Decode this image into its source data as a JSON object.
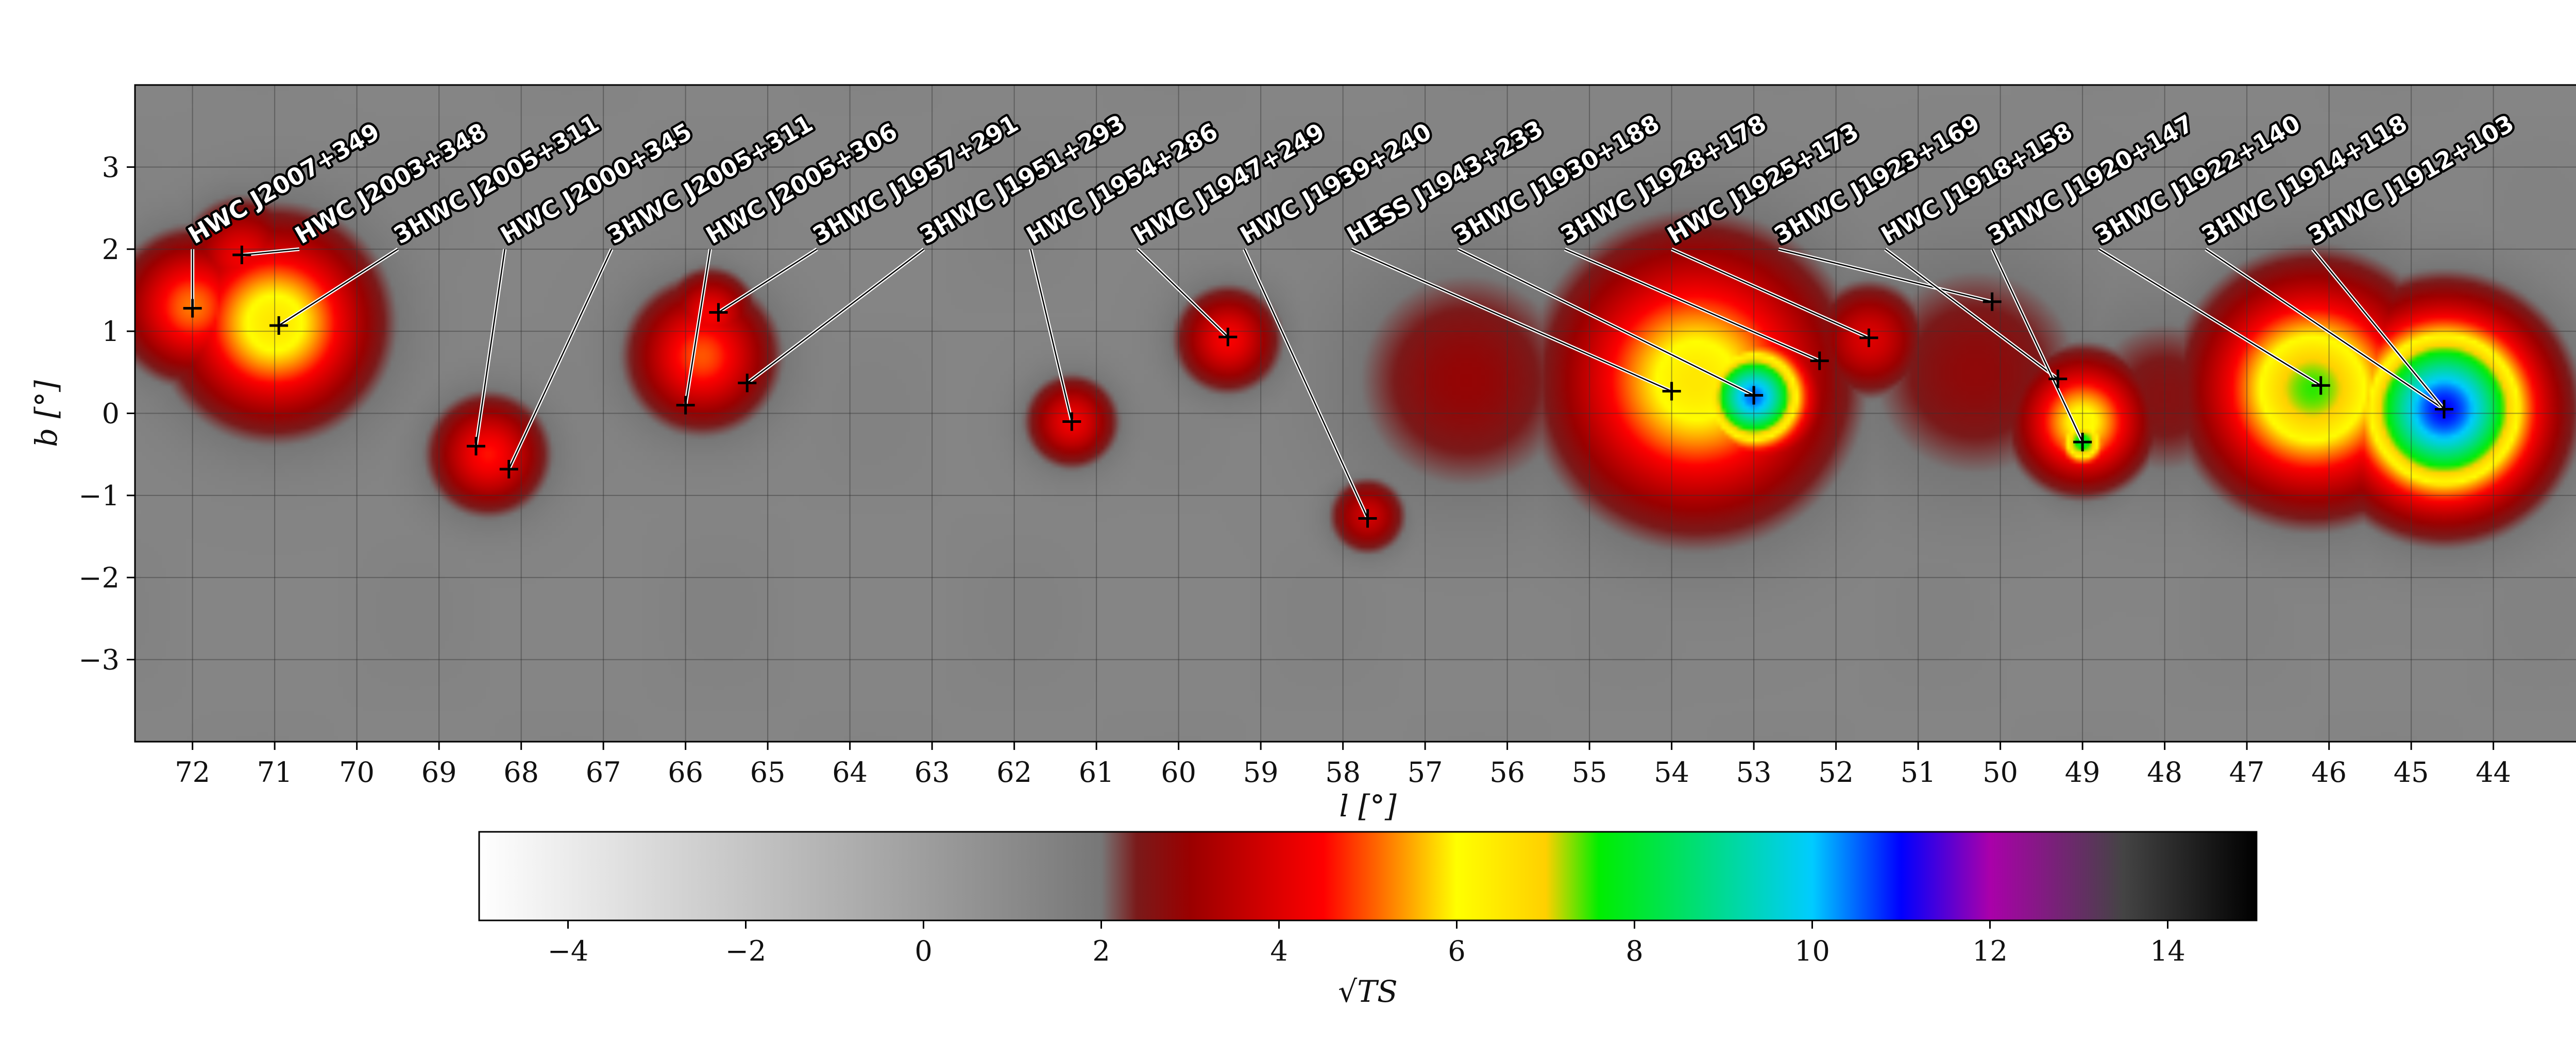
{
  "chart_data": {
    "type": "heatmap",
    "title": "",
    "xlabel": "l [°]",
    "ylabel": "b [°]",
    "colorbar_label": "√TS",
    "xlim": [
      72.7,
      42.7
    ],
    "ylim": [
      -4,
      4
    ],
    "x_ticks": [
      72,
      71,
      70,
      69,
      68,
      67,
      66,
      65,
      64,
      63,
      62,
      61,
      60,
      59,
      58,
      57,
      56,
      55,
      54,
      53,
      52,
      51,
      50,
      49,
      48,
      47,
      46,
      45,
      44
    ],
    "y_ticks": [
      -3,
      -2,
      -1,
      0,
      1,
      2,
      3
    ],
    "colorbar_range": [
      -5,
      15
    ],
    "colorbar_ticks": [
      -4,
      -2,
      0,
      2,
      4,
      6,
      8,
      10,
      12,
      14
    ],
    "grid": true,
    "colormap_stops": [
      {
        "v": -5,
        "color": "#ffffff"
      },
      {
        "v": 2,
        "color": "#777777"
      },
      {
        "v": 2.4,
        "color": "#7a1a1a"
      },
      {
        "v": 3,
        "color": "#9a0000"
      },
      {
        "v": 4.5,
        "color": "#ff0000"
      },
      {
        "v": 5.5,
        "color": "#ffaa00"
      },
      {
        "v": 6,
        "color": "#ffff00"
      },
      {
        "v": 7,
        "color": "#ffd000"
      },
      {
        "v": 7.6,
        "color": "#00ee00"
      },
      {
        "v": 10,
        "color": "#00ccff"
      },
      {
        "v": 11,
        "color": "#0000ff"
      },
      {
        "v": 12,
        "color": "#aa00aa"
      },
      {
        "v": 13.5,
        "color": "#444444"
      },
      {
        "v": 15,
        "color": "#000000"
      }
    ],
    "background_sqrt_ts": 1.3,
    "emission": [
      {
        "l": 72.0,
        "b": 1.3,
        "peak": 4.2,
        "sigma": 0.55
      },
      {
        "l": 71.0,
        "b": 1.1,
        "peak": 5.5,
        "sigma": 0.75
      },
      {
        "l": 71.4,
        "b": 1.9,
        "peak": 3.3,
        "sigma": 0.45
      },
      {
        "l": 68.4,
        "b": -0.5,
        "peak": 3.6,
        "sigma": 0.45
      },
      {
        "l": 65.8,
        "b": 0.7,
        "peak": 4.0,
        "sigma": 0.55
      },
      {
        "l": 65.7,
        "b": 1.2,
        "peak": 3.4,
        "sigma": 0.35
      },
      {
        "l": 61.3,
        "b": -0.1,
        "peak": 3.3,
        "sigma": 0.35
      },
      {
        "l": 59.4,
        "b": 0.9,
        "peak": 3.4,
        "sigma": 0.4
      },
      {
        "l": 57.7,
        "b": -1.25,
        "peak": 2.8,
        "sigma": 0.3
      },
      {
        "l": 56.5,
        "b": 0.4,
        "peak": 1.9,
        "sigma": 1.0
      },
      {
        "l": 53.7,
        "b": 0.4,
        "peak": 5.5,
        "sigma": 1.05
      },
      {
        "l": 53.0,
        "b": 0.2,
        "peak": 9.5,
        "sigma": 0.45
      },
      {
        "l": 51.6,
        "b": 0.9,
        "peak": 3.0,
        "sigma": 0.45
      },
      {
        "l": 50.3,
        "b": 0.5,
        "peak": 1.8,
        "sigma": 1.0
      },
      {
        "l": 49.0,
        "b": -0.1,
        "peak": 5.2,
        "sigma": 0.5
      },
      {
        "l": 49.0,
        "b": -0.35,
        "peak": 7.0,
        "sigma": 0.22
      },
      {
        "l": 48.0,
        "b": 0.2,
        "peak": 1.6,
        "sigma": 0.8
      },
      {
        "l": 46.2,
        "b": 0.3,
        "peak": 6.5,
        "sigma": 0.85
      },
      {
        "l": 44.6,
        "b": 0.05,
        "peak": 10.0,
        "sigma": 0.75
      }
    ],
    "sources": [
      {
        "name": "HWC J2007+349",
        "l": 72.0,
        "b": 1.28,
        "label_l": 72.0,
        "label_b": 2.0
      },
      {
        "name": "HWC J2003+348",
        "l": 71.4,
        "b": 1.93,
        "label_l": 70.7,
        "label_b": 2.0
      },
      {
        "name": "3HWC J2005+311",
        "l": 70.95,
        "b": 1.07,
        "label_l": 69.5,
        "label_b": 2.0
      },
      {
        "name": "HWC J2000+345",
        "l": 68.55,
        "b": -0.4,
        "label_l": 68.2,
        "label_b": 2.0
      },
      {
        "name": "3HWC J2005+311",
        "l": 68.15,
        "b": -0.68,
        "label_l": 66.9,
        "label_b": 2.0
      },
      {
        "name": "HWC J2005+306",
        "l": 66.0,
        "b": 0.1,
        "label_l": 65.7,
        "label_b": 2.0
      },
      {
        "name": "3HWC J1957+291",
        "l": 65.6,
        "b": 1.23,
        "label_l": 64.4,
        "label_b": 2.0
      },
      {
        "name": "3HWC J1951+293",
        "l": 65.25,
        "b": 0.37,
        "label_l": 63.1,
        "label_b": 2.0
      },
      {
        "name": "HWC J1954+286",
        "l": 61.3,
        "b": -0.1,
        "label_l": 61.8,
        "label_b": 2.0
      },
      {
        "name": "HWC J1947+249",
        "l": 59.4,
        "b": 0.93,
        "label_l": 60.5,
        "label_b": 2.0
      },
      {
        "name": "HWC J1939+240",
        "l": 57.7,
        "b": -1.28,
        "label_l": 59.2,
        "label_b": 2.0
      },
      {
        "name": "HESS J1943+233",
        "l": 54.0,
        "b": 0.27,
        "label_l": 57.9,
        "label_b": 2.0
      },
      {
        "name": "3HWC J1930+188",
        "l": 53.0,
        "b": 0.22,
        "label_l": 56.6,
        "label_b": 2.0
      },
      {
        "name": "3HWC J1928+178",
        "l": 52.2,
        "b": 0.64,
        "label_l": 55.3,
        "label_b": 2.0
      },
      {
        "name": "HWC J1925+173",
        "l": 51.6,
        "b": 0.92,
        "label_l": 54.0,
        "label_b": 2.0
      },
      {
        "name": "3HWC J1923+169",
        "l": 50.1,
        "b": 1.36,
        "label_l": 52.7,
        "label_b": 2.0
      },
      {
        "name": "HWC J1918+158",
        "l": 49.3,
        "b": 0.42,
        "label_l": 51.4,
        "label_b": 2.0
      },
      {
        "name": "3HWC J1920+147",
        "l": 49.0,
        "b": -0.35,
        "label_l": 50.1,
        "label_b": 2.0
      },
      {
        "name": "3HWC J1922+140",
        "l": 46.1,
        "b": 0.34,
        "label_l": 48.8,
        "label_b": 2.0
      },
      {
        "name": "3HWC J1914+118",
        "l": 44.6,
        "b": 0.05,
        "label_l": 47.5,
        "label_b": 2.0
      },
      {
        "name": "3HWC J1912+103",
        "l": 44.6,
        "b": 0.05,
        "label_l": 46.2,
        "label_b": 2.0
      }
    ]
  }
}
